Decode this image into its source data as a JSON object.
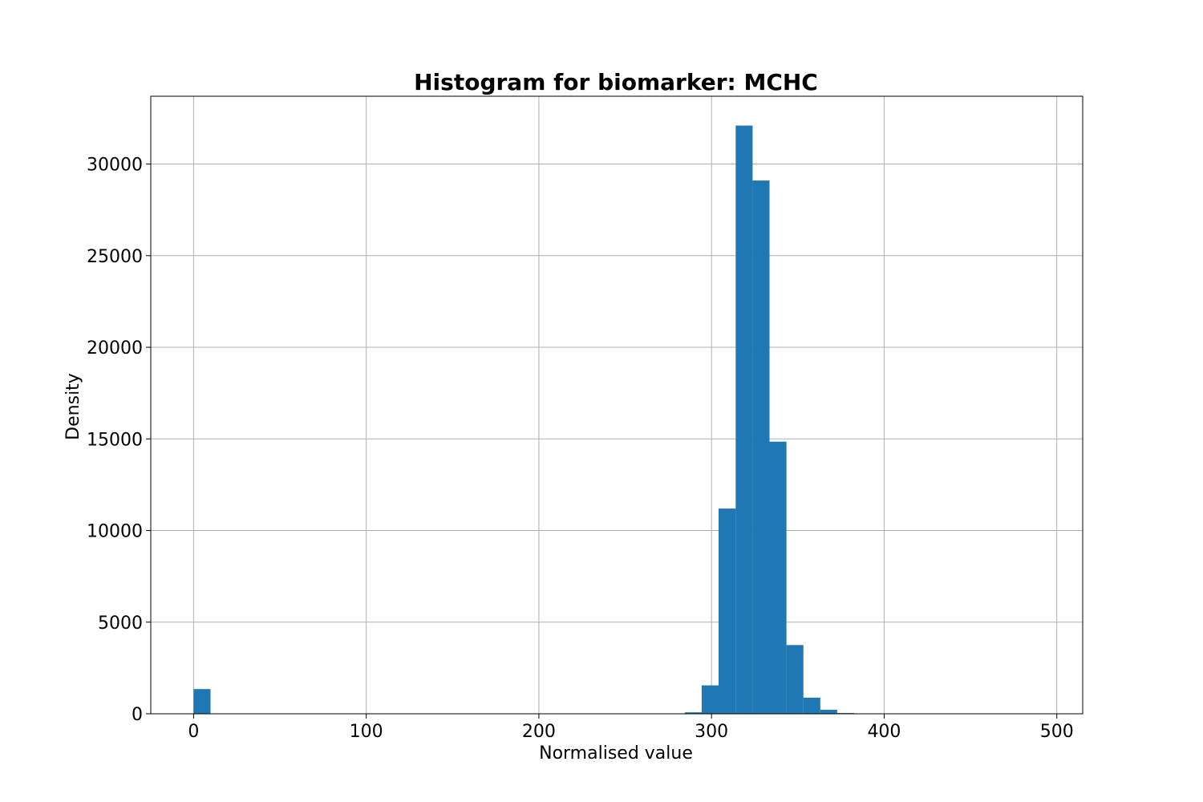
{
  "chart_data": {
    "type": "bar",
    "subtype": "histogram",
    "title": "Histogram for biomarker: MCHC",
    "xlabel": "Normalised value",
    "ylabel": "Density",
    "xlim": [
      -24.8,
      515
    ],
    "ylim": [
      0,
      33700
    ],
    "grid": true,
    "legend": "none",
    "bar_color": "#1f77b4",
    "x_ticks": [
      0,
      100,
      200,
      300,
      400,
      500
    ],
    "x_tick_labels": [
      "0",
      "100",
      "200",
      "300",
      "400",
      "500"
    ],
    "y_ticks": [
      0,
      5000,
      10000,
      15000,
      20000,
      25000,
      30000
    ],
    "y_tick_labels": [
      "0",
      "5000",
      "10000",
      "15000",
      "20000",
      "25000",
      "30000"
    ],
    "bins": [
      {
        "x0": 0,
        "x1": 9.8,
        "value": 1350
      },
      {
        "x0": 284.5,
        "x1": 294.3,
        "value": 80
      },
      {
        "x0": 294.3,
        "x1": 304.1,
        "value": 1550
      },
      {
        "x0": 304.1,
        "x1": 314.0,
        "value": 11200
      },
      {
        "x0": 314.0,
        "x1": 323.8,
        "value": 32100
      },
      {
        "x0": 323.8,
        "x1": 333.6,
        "value": 29100
      },
      {
        "x0": 333.6,
        "x1": 343.4,
        "value": 14850
      },
      {
        "x0": 343.4,
        "x1": 353.2,
        "value": 3750
      },
      {
        "x0": 353.2,
        "x1": 363.0,
        "value": 880
      },
      {
        "x0": 363.0,
        "x1": 372.8,
        "value": 220
      },
      {
        "x0": 372.8,
        "x1": 382.6,
        "value": 40
      }
    ]
  }
}
